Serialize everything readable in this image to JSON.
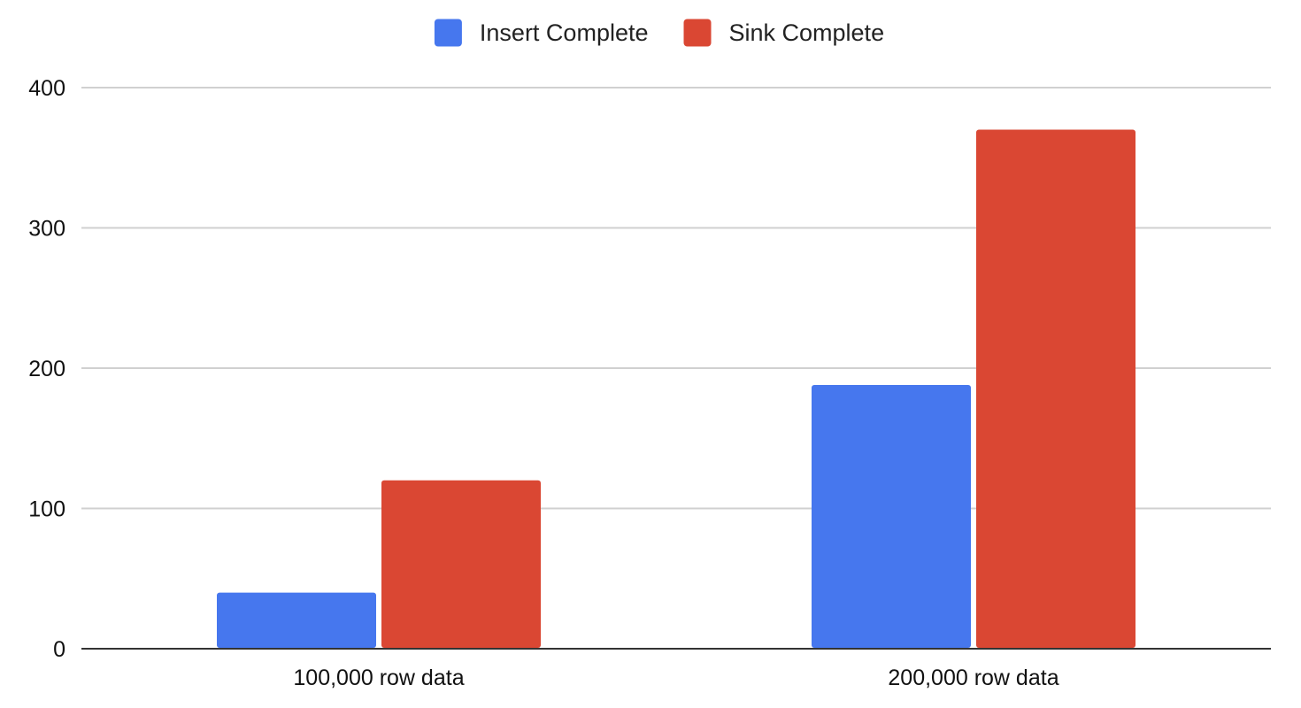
{
  "chart_data": {
    "type": "bar",
    "title": "",
    "xlabel": "",
    "ylabel": "",
    "categories": [
      "100,000 row data",
      "200,000 row data"
    ],
    "series": [
      {
        "name": "Insert Complete",
        "color": "#4677ee",
        "values": [
          40,
          188
        ]
      },
      {
        "name": "Sink Complete",
        "color": "#da4733",
        "values": [
          120,
          370
        ]
      }
    ],
    "ylim": [
      0,
      400
    ],
    "yticks": [
      0,
      100,
      200,
      300,
      400
    ],
    "grid": true,
    "legend_position": "top-center"
  }
}
